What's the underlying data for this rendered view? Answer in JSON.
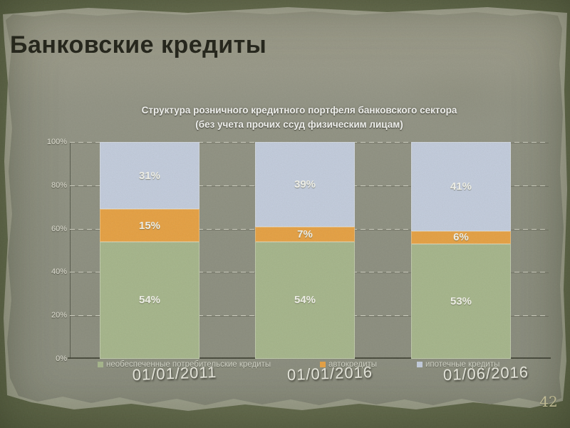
{
  "slide": {
    "title": "Банковские кредиты",
    "page_number": "42"
  },
  "chart_data": {
    "type": "bar",
    "stacked": true,
    "title_line1": "Структура розничного кредитного портфеля банковского сектора",
    "title_line2": "(без учета прочих ссуд физическим лицам)",
    "categories": [
      "01/01/2011",
      "01/01/2016",
      "01/06/2016"
    ],
    "series": [
      {
        "name": "необеспеченные потребительские кредиты",
        "color": "#a9ba8e",
        "values": [
          54,
          54,
          53
        ]
      },
      {
        "name": "автокредиты",
        "color": "#f0a33e",
        "values": [
          15,
          7,
          6
        ]
      },
      {
        "name": "ипотечные кредиты",
        "color": "#c9d3e8",
        "values": [
          31,
          39,
          41
        ]
      }
    ],
    "ylim": [
      0,
      100
    ],
    "yticks": [
      "100%",
      "80%",
      "60%",
      "40%",
      "20%",
      "0%"
    ],
    "grid": "dashed-horizontal",
    "legend_position": "bottom",
    "data_labels": "percent-inside-segments",
    "xlabel": "",
    "ylabel": ""
  }
}
